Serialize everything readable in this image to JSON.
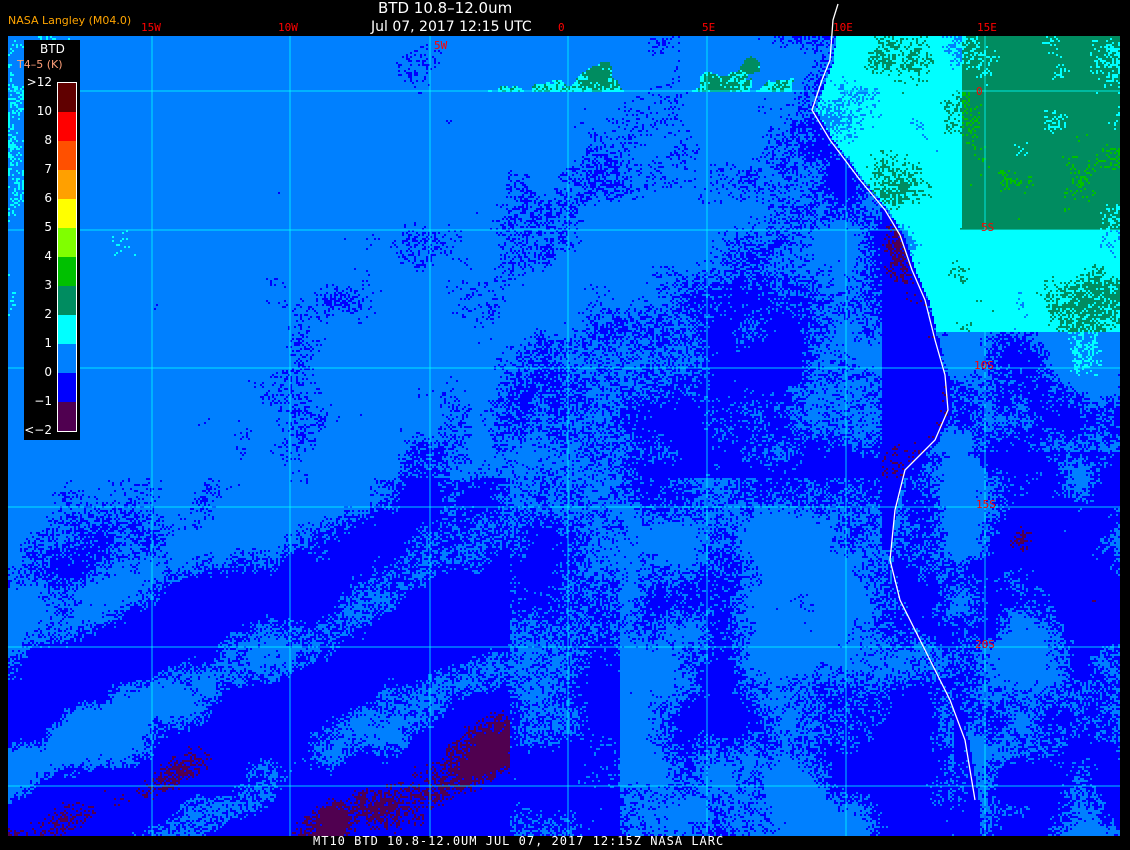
{
  "header": {
    "title": "BTD 10.8–12.0um",
    "datetime": "Jul 07, 2017 12:15 UTC",
    "credit": "NASA Langley (M04.0)"
  },
  "longitude_labels": [
    "15W",
    "10W",
    "5W",
    "0",
    "5E",
    "10E",
    "15E"
  ],
  "latitude_labels": [
    "0",
    "5S",
    "10S",
    "15S",
    "20S"
  ],
  "legend": {
    "title": "BTD",
    "units": "T4–5 (K)",
    "ticks": [
      ">12",
      "10",
      "8",
      "7",
      "6",
      "5",
      "4",
      "3",
      "2",
      "1",
      "0",
      "−1",
      "<−2"
    ],
    "colors": [
      "#600000",
      "#ff0000",
      "#ff5000",
      "#ffa000",
      "#ffff00",
      "#80ff00",
      "#00c000",
      "#008c60",
      "#00ffff",
      "#0080ff",
      "#0000ff",
      "#500050"
    ]
  },
  "footer": "MT10  BTD 10.8-12.0UM   JUL 07, 2017 12:15Z   NASA LARC",
  "colors": {
    "grid": "#00ffff",
    "coastline": "#ffffff",
    "labels": "#ff0000"
  }
}
